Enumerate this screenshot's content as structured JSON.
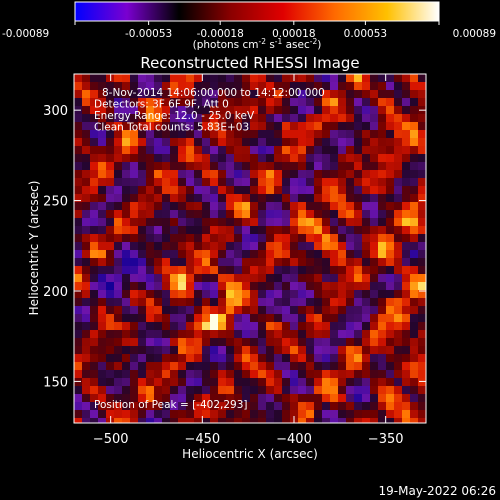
{
  "chart_data": {
    "type": "heatmap",
    "title": "Reconstructed RHESSI Image",
    "xlabel": "Heliocentric X (arcsec)",
    "ylabel": "Heliocentric Y (arcsec)",
    "xlim": [
      -520,
      -328
    ],
    "ylim": [
      127,
      320
    ],
    "x_ticks": [
      -500,
      -450,
      -400,
      -350
    ],
    "y_ticks": [
      150,
      200,
      250,
      300
    ],
    "colorbar": {
      "range": [
        -0.00089,
        0.00089
      ],
      "tick_values": [
        -0.00089,
        -0.00053,
        -0.00018,
        0.00018,
        0.00053,
        0.00089
      ],
      "tick_labels": [
        "-0.00089",
        "-0.00053",
        "-0.00018",
        "0.00018",
        "0.00053",
        "0.00089"
      ],
      "unit_parts": [
        "(photons cm",
        "-2",
        " s",
        "-1",
        " asec",
        "-2",
        ")"
      ],
      "colors": [
        "#0000ff",
        "#7a00d0",
        "#000000",
        "#8b0000",
        "#e00000",
        "#ff6a00",
        "#ffc000",
        "#ffffff"
      ]
    },
    "info_lines": [
      "8-Nov-2014 14:06:00.000 to 14:12:00.000",
      "Detectors: 3F 6F 9F, Att 0",
      "Energy Range: 12.0 - 25.0 keV",
      "Clean    Total counts: 5.83E+03"
    ],
    "peak_label": "Position of Peak = [-402,293]",
    "peak": {
      "x": -402,
      "y": 293
    },
    "grid": false
  },
  "footer": {
    "timestamp": "19-May-2022 06:26"
  }
}
